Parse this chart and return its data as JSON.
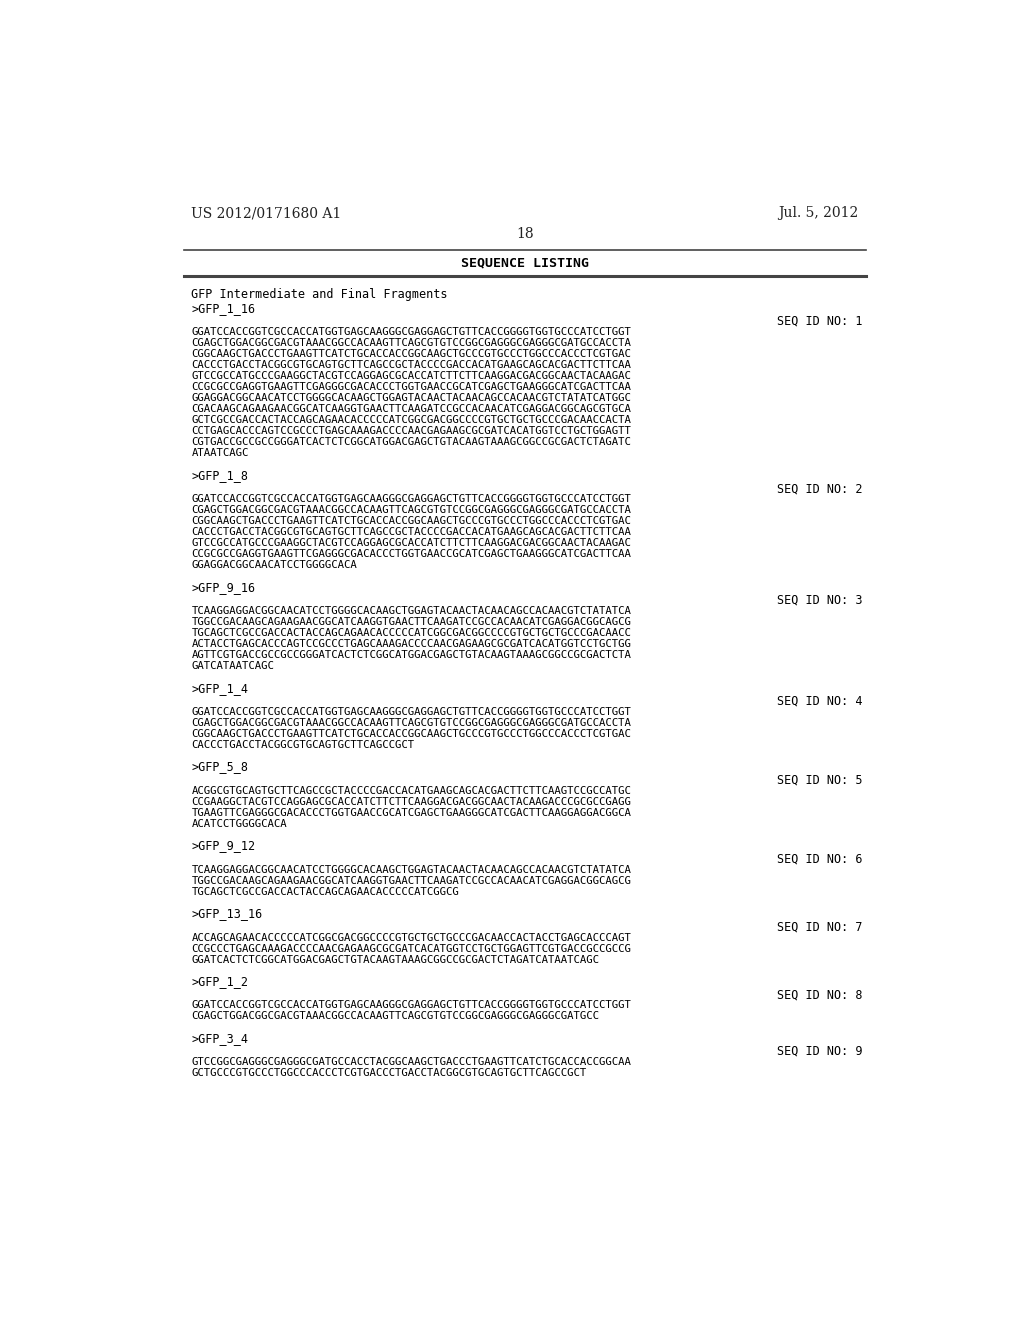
{
  "background_color": "#ffffff",
  "header_left": "US 2012/0171680 A1",
  "header_right": "Jul. 5, 2012",
  "page_number": "18",
  "section_title": "SEQUENCE LISTING",
  "content": [
    {
      "type": "text",
      "text": "GFP Intermediate and Final Fragments",
      "style": "mono_normal"
    },
    {
      "type": "text",
      "text": ">GFP_1_16",
      "style": "mono_bold_underline"
    },
    {
      "type": "seq_id",
      "text": "SEQ ID NO: 1"
    },
    {
      "type": "sequence",
      "lines": [
        "GGATCCACCGGTCGCCACCATGGTGAGCAAGGGCGAGGAGCTGTTCACCGGGGTGGTGCCCATCCTGGT",
        "CGAGCTGGACGGCGACGTAAACGGCCACAAGTTCAGCGTGTCCGGCGAGGGCGAGGGCGATGCCACCTA",
        "CGGCAAGCTGACCCTGAAGTTCATCTGCACCACCGGCAAGCTGCCCGTGCCCTGGCCCACCCTCGTGAC",
        "CACCCTGACCTACGGCGTGCAGTGCTTCAGCCGCTACCCCGACCACATGAAGCAGCACGACTTCTTCAA",
        "GTCCGCCATGCCCGAAGGCTACGTCCAGGAGCGCACCATCTTCTTCAAGGACGACGGCAACTACAAGAC",
        "CCGCGCCGAGGTGAAGTTCGAGGGCGACACCCTGGTGAACCGCATCGAGCTGAAGGGCATCGACTTCAA",
        "GGAGGACGGCAACATCCTGGGGCACAAGCTGGAGTACAACTACAACAGCCACAACGTCTATATCATGGC",
        "CGACAAGCAGAAGAACGGCATCAAGGTGAACTTCAAGATCCGCCACAACATCGAGGACGGCAGCGTGCA",
        "GCTCGCCGACCACTACCAGCAGAACACCCCCATCGGCGACGGCCCCGTGCTGCTGCCCGACAACCACTA",
        "CCTGAGCACCCAGTCCGCCCTGAGCAAAGACCCCAACGAGAAGCGCGATCACATGGTCCTGCTGGAGTT",
        "CGTGACCGCCGCCGGGATCACTCTCGGCATGGACGAGCTGTACAAGTAAAGCGGCCGCGACTCTAGATC",
        "ATAATCAGC"
      ]
    },
    {
      "type": "blank"
    },
    {
      "type": "text",
      "text": ">GFP_1_8",
      "style": "mono_bold_underline"
    },
    {
      "type": "seq_id",
      "text": "SEQ ID NO: 2"
    },
    {
      "type": "sequence",
      "lines": [
        "GGATCCACCGGTCGCCACCATGGTGAGCAAGGGCGAGGAGCTGTTCACCGGGGTGGTGCCCATCCTGGT",
        "CGAGCTGGACGGCGACGTAAACGGCCACAAGTTCAGCGTGTCCGGCGAGGGCGAGGGCGATGCCACCTA",
        "CGGCAAGCTGACCCTGAAGTTCATCTGCACCACCGGCAAGCTGCCCGTGCCCTGGCCCACCCTCGTGAC",
        "CACCCTGACCTACGGCGTGCAGTGCTTCAGCCGCTACCCCGACCACATGAAGCAGCACGACTTCTTCAA",
        "GTCCGCCATGCCCGAAGGCTACGTCCAGGAGCGCACCATCTTCTTCAAGGACGACGGCAACTACAAGAC",
        "CCGCGCCGAGGTGAAGTTCGAGGGCGACACCCTGGTGAACCGCATCGAGCTGAAGGGCATCGACTTCAA",
        "GGAGGACGGCAACATCCTGGGGCACA"
      ]
    },
    {
      "type": "blank"
    },
    {
      "type": "text",
      "text": ">GFP_9_16",
      "style": "mono_bold_underline"
    },
    {
      "type": "seq_id",
      "text": "SEQ ID NO: 3"
    },
    {
      "type": "sequence",
      "lines": [
        "TCAAGGAGGACGGCAACATCCTGGGGCACAAGCTGGAGTACAACTACAACAGCCACAACGTCTATATCA",
        "TGGCCGACAAGCAGAAGAACGGCATCAAGGTGAACTTCAAGATCCGCCACAACATCGAGGACGGCAGCG",
        "TGCAGCTCGCCGACCACTACCAGCAGAACACCCCCATCGGCGACGGCCCCGTGCTGCTGCCCGACAACC",
        "ACTACCTGAGCACCCAGTCCGCCCTGAGCAAAGACCCCAACGAGAAGCGCGATCACATGGTCCTGCTGG",
        "AGTTCGTGACCGCCGCCGGGATCACTCTCGGCATGGACGAGCTGTACAAGTAAAGCGGCCGCGACTCTA",
        "GATCATAATCAGC"
      ]
    },
    {
      "type": "blank"
    },
    {
      "type": "text",
      "text": ">GFP_1_4",
      "style": "mono_bold_underline"
    },
    {
      "type": "seq_id",
      "text": "SEQ ID NO: 4"
    },
    {
      "type": "sequence",
      "lines": [
        "GGATCCACCGGTCGCCACCATGGTGAGCAAGGGCGAGGAGCTGTTCACCGGGGTGGTGCCCATCCTGGT",
        "CGAGCTGGACGGCGACGTAAACGGCCACAAGTTCAGCGTGTCCGGCGAGGGCGAGGGCGATGCCACCTA",
        "CGGCAAGCTGACCCTGAAGTTCATCTGCACCACCGGCAAGCTGCCCGTGCCCTGGCCCACCCTCGTGAC",
        "CACCCTGACCTACGGCGTGCAGTGCTTCAGCCGCT"
      ]
    },
    {
      "type": "blank"
    },
    {
      "type": "text",
      "text": ">GFP_5_8",
      "style": "mono_bold_underline"
    },
    {
      "type": "seq_id",
      "text": "SEQ ID NO: 5"
    },
    {
      "type": "sequence",
      "lines": [
        "ACGGCGTGCAGTGCTTCAGCCGCTACCCCGACCACATGAAGCAGCACGACTTCTTCAAGTCCGCCATGC",
        "CCGAAGGCTACGTCCAGGAGCGCACCATCTTCTTCAAGGACGACGGCAACTACAAGACCCGCGCCGAGG",
        "TGAAGTTCGAGGGCGACACCCTGGTGAACCGCATCGAGCTGAAGGGCATCGACTTCAAGGAGGACGGCA",
        "ACATCCTGGGGCACA"
      ]
    },
    {
      "type": "blank"
    },
    {
      "type": "text",
      "text": ">GFP_9_12",
      "style": "mono_bold_underline"
    },
    {
      "type": "seq_id",
      "text": "SEQ ID NO: 6"
    },
    {
      "type": "sequence",
      "lines": [
        "TCAAGGAGGACGGCAACATCCTGGGGCACAAGCTGGAGTACAACTACAACAGCCACAACGTCTATATCA",
        "TGGCCGACAAGCAGAAGAACGGCATCAAGGTGAACTTCAAGATCCGCCACAACATCGAGGACGGCAGCG",
        "TGCAGCTCGCCGACCACTACCAGCAGAACACCCCCATCGGCG"
      ]
    },
    {
      "type": "blank"
    },
    {
      "type": "text",
      "text": ">GFP_13_16",
      "style": "mono_bold_underline"
    },
    {
      "type": "seq_id",
      "text": "SEQ ID NO: 7"
    },
    {
      "type": "sequence",
      "lines": [
        "ACCAGCAGAACACCCCCATCGGCGACGGCCCCGTGCTGCTGCCCGACAACCACTACCTGAGCACCCAGT",
        "CCGCCCTGAGCAAAGACCCCAACGAGAAGCGCGATCACATGGTCCTGCTGGAGTTCGTGACCGCCGCCG",
        "GGATCACTCTCGGCATGGACGAGCTGTACAAGTAAAGCGGCCGCGACTCTAGATCATAATCAGC"
      ]
    },
    {
      "type": "blank"
    },
    {
      "type": "text",
      "text": ">GFP_1_2",
      "style": "mono_bold_underline"
    },
    {
      "type": "seq_id",
      "text": "SEQ ID NO: 8"
    },
    {
      "type": "sequence",
      "lines": [
        "GGATCCACCGGTCGCCACCATGGTGAGCAAGGGCGAGGAGCTGTTCACCGGGGTGGTGCCCATCCTGGT",
        "CGAGCTGGACGGCGACGTAAACGGCCACAAGTTCAGCGTGTCCGGCGAGGGCGAGGGCGATGCC"
      ]
    },
    {
      "type": "blank"
    },
    {
      "type": "text",
      "text": ">GFP_3_4",
      "style": "mono_bold_underline"
    },
    {
      "type": "seq_id",
      "text": "SEQ ID NO: 9"
    },
    {
      "type": "sequence",
      "lines": [
        "GTCCGGCGAGGGCGAGGGCGATGCCACCTACGGCAAGCTGACCCTGAAGTTCATCTGCACCACCGGCAA",
        "GCTGCCCGTGCCCTGGCCCACCCTCGTGACCCTGACCTACGGCGTGCAGTGCTTCAGCCGCT"
      ]
    }
  ]
}
